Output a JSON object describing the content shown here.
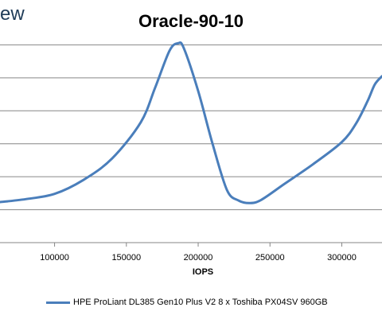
{
  "watermark": "ew",
  "chart_data": {
    "type": "line",
    "title": "Oracle-90-10",
    "xlabel": "IOPS",
    "ylabel": "",
    "xlim": [
      62000,
      328000
    ],
    "ylim": [
      0,
      7
    ],
    "x_ticks": [
      "100000",
      "150000",
      "200000",
      "250000",
      "300000"
    ],
    "x_tick_values": [
      100000,
      150000,
      200000,
      250000,
      300000
    ],
    "y_gridlines": [
      1,
      2,
      3,
      4,
      5,
      6
    ],
    "grid": true,
    "legend": "bottom",
    "series": [
      {
        "name": "HPE ProLiant DL385 Gen10 Plus V2 8 x Toshiba PX04SV 960GB",
        "color": "#4a7ebb",
        "points": [
          [
            62000,
            1.23
          ],
          [
            80000,
            1.32
          ],
          [
            100000,
            1.48
          ],
          [
            120000,
            1.9
          ],
          [
            140000,
            2.55
          ],
          [
            160000,
            3.65
          ],
          [
            170000,
            4.7
          ],
          [
            180000,
            5.82
          ],
          [
            186000,
            6.05
          ],
          [
            190000,
            5.9
          ],
          [
            200000,
            4.6
          ],
          [
            210000,
            3.0
          ],
          [
            220000,
            1.6
          ],
          [
            228000,
            1.28
          ],
          [
            236000,
            1.2
          ],
          [
            244000,
            1.3
          ],
          [
            260000,
            1.78
          ],
          [
            280000,
            2.38
          ],
          [
            300000,
            3.05
          ],
          [
            310000,
            3.62
          ],
          [
            318000,
            4.3
          ],
          [
            323000,
            4.8
          ],
          [
            328000,
            5.05
          ]
        ]
      }
    ]
  }
}
